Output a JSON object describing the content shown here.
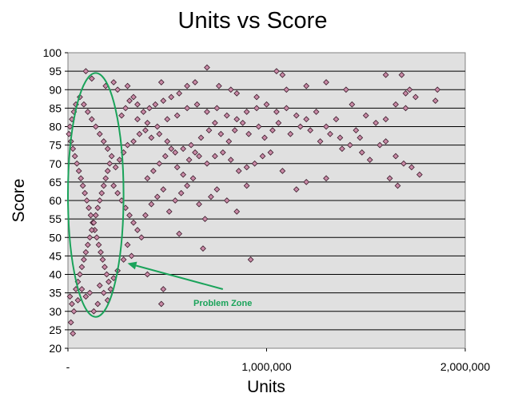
{
  "chart_data": {
    "type": "scatter",
    "title": "Units vs Score",
    "xlabel": "Units",
    "ylabel": "Score",
    "xlim": [
      0,
      2000000
    ],
    "ylim": [
      20,
      100
    ],
    "x_ticks": [
      0,
      1000000,
      2000000
    ],
    "x_tick_labels": [
      "-",
      "1,000,000",
      "2,000,000"
    ],
    "y_ticks": [
      20,
      25,
      30,
      35,
      40,
      45,
      50,
      55,
      60,
      65,
      70,
      75,
      80,
      85,
      90,
      95,
      100
    ],
    "y_tick_labels": [
      "20",
      "25",
      "30",
      "35",
      "40",
      "45",
      "50",
      "55",
      "60",
      "65",
      "70",
      "75",
      "80",
      "85",
      "90",
      "95",
      "100"
    ],
    "grid": "horizontal",
    "legend": "none",
    "plot_background": "#e0e0e0",
    "marker_color": "#c98aa6",
    "marker_edge": "#3a1a2a",
    "annotation": {
      "text": "Problem Zone",
      "color": "#1aa35a",
      "ellipse_center": [
        140000,
        61.5
      ],
      "ellipse_radii": [
        140000,
        33
      ],
      "arrow_from": [
        780000,
        36
      ],
      "arrow_to": [
        300000,
        43
      ]
    },
    "series": [
      {
        "points": [
          [
            90000,
            95
          ],
          [
            120000,
            93
          ],
          [
            230000,
            92
          ],
          [
            250000,
            90
          ],
          [
            190000,
            91
          ],
          [
            300000,
            91
          ],
          [
            470000,
            92
          ],
          [
            700000,
            96
          ],
          [
            1050000,
            95
          ],
          [
            1080000,
            94
          ],
          [
            1600000,
            94
          ],
          [
            1680000,
            94
          ],
          [
            1860000,
            90
          ],
          [
            1720000,
            90
          ],
          [
            1700000,
            89
          ],
          [
            1400000,
            90
          ],
          [
            1200000,
            91
          ],
          [
            1300000,
            92
          ],
          [
            1100000,
            90
          ],
          [
            950000,
            88
          ],
          [
            850000,
            89
          ],
          [
            820000,
            90
          ],
          [
            760000,
            91
          ],
          [
            640000,
            92
          ],
          [
            600000,
            91
          ],
          [
            560000,
            89
          ],
          [
            520000,
            88
          ],
          [
            480000,
            87
          ],
          [
            440000,
            86
          ],
          [
            410000,
            85
          ],
          [
            380000,
            84
          ],
          [
            350000,
            86
          ],
          [
            330000,
            88
          ],
          [
            310000,
            87
          ],
          [
            290000,
            85
          ],
          [
            270000,
            83
          ],
          [
            350000,
            82
          ],
          [
            400000,
            81
          ],
          [
            450000,
            80
          ],
          [
            500000,
            82
          ],
          [
            550000,
            83
          ],
          [
            600000,
            85
          ],
          [
            650000,
            86
          ],
          [
            700000,
            84
          ],
          [
            750000,
            85
          ],
          [
            800000,
            83
          ],
          [
            850000,
            82
          ],
          [
            900000,
            84
          ],
          [
            950000,
            85
          ],
          [
            1000000,
            86
          ],
          [
            1050000,
            84
          ],
          [
            1100000,
            85
          ],
          [
            1150000,
            83
          ],
          [
            1200000,
            82
          ],
          [
            1250000,
            84
          ],
          [
            1300000,
            80
          ],
          [
            1350000,
            82
          ],
          [
            1430000,
            86
          ],
          [
            1500000,
            83
          ],
          [
            1550000,
            81
          ],
          [
            1600000,
            82
          ],
          [
            1650000,
            86
          ],
          [
            1700000,
            85
          ],
          [
            1750000,
            88
          ],
          [
            1850000,
            87
          ],
          [
            1450000,
            79
          ],
          [
            1380000,
            74
          ],
          [
            1470000,
            77
          ],
          [
            1600000,
            76
          ],
          [
            1650000,
            72
          ],
          [
            1690000,
            70
          ],
          [
            1730000,
            69
          ],
          [
            1770000,
            67
          ],
          [
            1660000,
            64
          ],
          [
            1620000,
            66
          ],
          [
            1300000,
            66
          ],
          [
            1200000,
            65
          ],
          [
            1150000,
            63
          ],
          [
            1080000,
            68
          ],
          [
            1020000,
            73
          ],
          [
            980000,
            72
          ],
          [
            940000,
            70
          ],
          [
            900000,
            69
          ],
          [
            860000,
            68
          ],
          [
            820000,
            71
          ],
          [
            780000,
            73
          ],
          [
            740000,
            72
          ],
          [
            700000,
            70
          ],
          [
            660000,
            72
          ],
          [
            620000,
            75
          ],
          [
            580000,
            74
          ],
          [
            540000,
            73
          ],
          [
            500000,
            76
          ],
          [
            460000,
            78
          ],
          [
            420000,
            77
          ],
          [
            390000,
            79
          ],
          [
            360000,
            78
          ],
          [
            330000,
            76
          ],
          [
            300000,
            75
          ],
          [
            280000,
            73
          ],
          [
            260000,
            71
          ],
          [
            240000,
            69
          ],
          [
            220000,
            72
          ],
          [
            200000,
            74
          ],
          [
            180000,
            76
          ],
          [
            160000,
            78
          ],
          [
            140000,
            80
          ],
          [
            120000,
            82
          ],
          [
            100000,
            84
          ],
          [
            80000,
            86
          ],
          [
            60000,
            88
          ],
          [
            40000,
            86
          ],
          [
            30000,
            84
          ],
          [
            20000,
            82
          ],
          [
            10000,
            80
          ],
          [
            5000,
            78
          ],
          [
            15000,
            76
          ],
          [
            25000,
            74
          ],
          [
            35000,
            72
          ],
          [
            45000,
            70
          ],
          [
            55000,
            68
          ],
          [
            65000,
            66
          ],
          [
            75000,
            64
          ],
          [
            85000,
            62
          ],
          [
            95000,
            60
          ],
          [
            105000,
            58
          ],
          [
            115000,
            56
          ],
          [
            125000,
            54
          ],
          [
            135000,
            52
          ],
          [
            145000,
            50
          ],
          [
            155000,
            48
          ],
          [
            165000,
            46
          ],
          [
            175000,
            44
          ],
          [
            185000,
            42
          ],
          [
            195000,
            40
          ],
          [
            205000,
            38
          ],
          [
            215000,
            36
          ],
          [
            10000,
            34
          ],
          [
            20000,
            32
          ],
          [
            30000,
            30
          ],
          [
            15000,
            27
          ],
          [
            25000,
            24
          ],
          [
            40000,
            36
          ],
          [
            50000,
            38
          ],
          [
            60000,
            40
          ],
          [
            70000,
            42
          ],
          [
            80000,
            44
          ],
          [
            90000,
            46
          ],
          [
            100000,
            48
          ],
          [
            110000,
            50
          ],
          [
            120000,
            52
          ],
          [
            130000,
            54
          ],
          [
            140000,
            56
          ],
          [
            150000,
            58
          ],
          [
            160000,
            60
          ],
          [
            170000,
            62
          ],
          [
            180000,
            64
          ],
          [
            190000,
            66
          ],
          [
            200000,
            68
          ],
          [
            210000,
            70
          ],
          [
            230000,
            64
          ],
          [
            250000,
            62
          ],
          [
            270000,
            60
          ],
          [
            290000,
            58
          ],
          [
            310000,
            56
          ],
          [
            330000,
            54
          ],
          [
            350000,
            52
          ],
          [
            370000,
            50
          ],
          [
            390000,
            56
          ],
          [
            420000,
            59
          ],
          [
            450000,
            61
          ],
          [
            480000,
            63
          ],
          [
            510000,
            57
          ],
          [
            540000,
            60
          ],
          [
            570000,
            62
          ],
          [
            600000,
            64
          ],
          [
            630000,
            66
          ],
          [
            660000,
            59
          ],
          [
            690000,
            55
          ],
          [
            720000,
            61
          ],
          [
            750000,
            63
          ],
          [
            800000,
            60
          ],
          [
            850000,
            57
          ],
          [
            900000,
            64
          ],
          [
            920000,
            44
          ],
          [
            680000,
            47
          ],
          [
            560000,
            51
          ],
          [
            480000,
            36
          ],
          [
            470000,
            32
          ],
          [
            400000,
            40
          ],
          [
            320000,
            45
          ],
          [
            300000,
            48
          ],
          [
            280000,
            44
          ],
          [
            250000,
            41
          ],
          [
            230000,
            39
          ],
          [
            150000,
            32
          ],
          [
            130000,
            30
          ],
          [
            110000,
            35
          ],
          [
            90000,
            34
          ],
          [
            70000,
            36
          ],
          [
            50000,
            33
          ],
          [
            160000,
            37
          ],
          [
            180000,
            35
          ],
          [
            200000,
            33
          ],
          [
            400000,
            66
          ],
          [
            430000,
            68
          ],
          [
            460000,
            70
          ],
          [
            490000,
            72
          ],
          [
            520000,
            74
          ],
          [
            550000,
            69
          ],
          [
            580000,
            67
          ],
          [
            610000,
            71
          ],
          [
            640000,
            73
          ],
          [
            670000,
            77
          ],
          [
            710000,
            79
          ],
          [
            740000,
            81
          ],
          [
            770000,
            78
          ],
          [
            810000,
            76
          ],
          [
            840000,
            79
          ],
          [
            880000,
            81
          ],
          [
            910000,
            78
          ],
          [
            960000,
            80
          ],
          [
            990000,
            77
          ],
          [
            1030000,
            79
          ],
          [
            1060000,
            81
          ],
          [
            1120000,
            78
          ],
          [
            1170000,
            80
          ],
          [
            1220000,
            79
          ],
          [
            1270000,
            76
          ],
          [
            1320000,
            78
          ],
          [
            1370000,
            77
          ],
          [
            1420000,
            75
          ],
          [
            1480000,
            73
          ],
          [
            1520000,
            71
          ],
          [
            1570000,
            75
          ]
        ]
      }
    ]
  }
}
